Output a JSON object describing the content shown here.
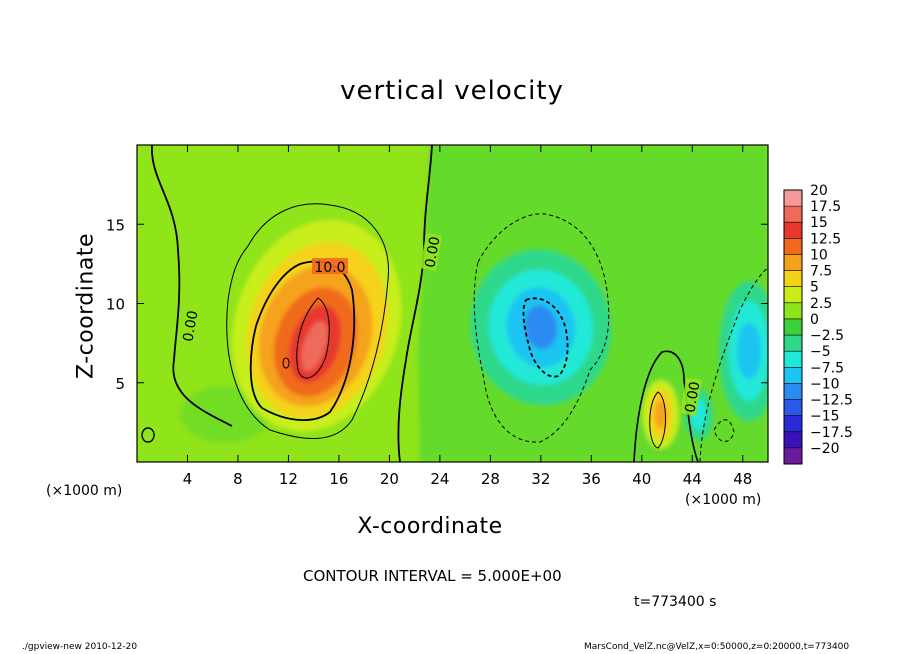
{
  "chart_data": {
    "type": "heatmap",
    "title": "vertical velocity",
    "xlabel": "X-coordinate",
    "ylabel": "Z-coordinate",
    "x_unit": "(×1000 m)",
    "z_unit": "(×1000 m)",
    "xlim": [
      0,
      50
    ],
    "ylim": [
      0,
      20
    ],
    "x_ticks": [
      4,
      8,
      12,
      16,
      20,
      24,
      28,
      32,
      36,
      40,
      44,
      48
    ],
    "y_ticks": [
      5,
      10,
      15
    ],
    "colorbar": {
      "levels": [
        20,
        17.5,
        15,
        12.5,
        10,
        7.5,
        5,
        2.5,
        0,
        -2.5,
        -5,
        -7.5,
        -10,
        -12.5,
        -15,
        -17.5,
        -20
      ],
      "colors": [
        "#f59a9a",
        "#ee6a5a",
        "#e8382e",
        "#f06a1e",
        "#f5a21a",
        "#f5d21a",
        "#c8ee1a",
        "#90e41a",
        "#3ed23a",
        "#2ed88a",
        "#20e8d8",
        "#1ec4f2",
        "#2a8cf0",
        "#2a58e8",
        "#2a2ad8",
        "#3a12b8",
        "#6a1a9a"
      ],
      "labels": [
        "20",
        "17.5",
        "15",
        "12.5",
        "10",
        "7.5",
        "5",
        "2.5",
        "0",
        "−2.5",
        "−5",
        "−7.5",
        "−10",
        "−12.5",
        "−15",
        "−17.5",
        "−20"
      ]
    },
    "features": [
      {
        "kind": "updraft",
        "x": 14,
        "z": 8,
        "max": 17.5
      },
      {
        "kind": "updraft",
        "x": 41.5,
        "z": 3,
        "max": 10
      },
      {
        "kind": "downdraft",
        "x": 32,
        "z": 8.5,
        "min": -10
      },
      {
        "kind": "downdraft",
        "x": 48.5,
        "z": 7,
        "min": -7.5
      },
      {
        "kind": "downdraft",
        "x": 44.5,
        "z": 3,
        "min": -7.5
      }
    ],
    "contour_labels": [
      "10.0",
      "0.00",
      "0.00",
      "0.00"
    ],
    "contour_interval_text": "CONTOUR INTERVAL = 5.000E+00",
    "time_text": "t=773400  s"
  },
  "footer": {
    "left": "./gpview-new   2010-12-20",
    "right": "MarsCond_VelZ.nc@VelZ,x=0:50000,z=0:20000,t=773400"
  }
}
